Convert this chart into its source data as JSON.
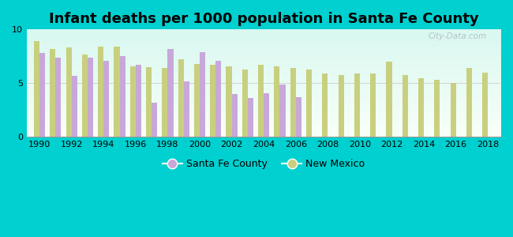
{
  "title": "Infant deaths per 1000 population in Santa Fe County",
  "years": [
    1990,
    1991,
    1992,
    1993,
    1994,
    1995,
    1996,
    1997,
    1998,
    1999,
    2000,
    2001,
    2002,
    2003,
    2004,
    2005,
    2006,
    2007,
    2008,
    2009,
    2010,
    2011,
    2012,
    2013,
    2014,
    2015,
    2016,
    2017,
    2018
  ],
  "santa_fe": [
    7.8,
    7.4,
    5.7,
    7.4,
    7.1,
    7.5,
    6.7,
    3.2,
    8.2,
    5.2,
    7.9,
    7.1,
    4.0,
    3.6,
    4.1,
    4.9,
    3.7,
    null,
    null,
    null,
    null,
    null,
    null,
    null,
    null,
    null,
    null,
    null,
    null
  ],
  "new_mexico": [
    8.9,
    8.2,
    8.3,
    7.7,
    8.4,
    8.4,
    6.6,
    6.5,
    6.4,
    7.2,
    6.8,
    6.7,
    6.6,
    6.3,
    6.7,
    6.6,
    6.4,
    6.3,
    5.9,
    5.8,
    5.9,
    5.9,
    7.0,
    5.8,
    5.5,
    5.3,
    5.0,
    6.4,
    6.0
  ],
  "santa_fe_color": "#c8a8d8",
  "new_mexico_color": "#c8d080",
  "outer_bg": "#00d0d0",
  "ylim": [
    0,
    10
  ],
  "yticks": [
    0,
    5,
    10
  ],
  "bar_width": 0.35,
  "title_fontsize": 13,
  "legend_fontsize": 9,
  "tick_fontsize": 8,
  "watermark": "City-Data.com"
}
